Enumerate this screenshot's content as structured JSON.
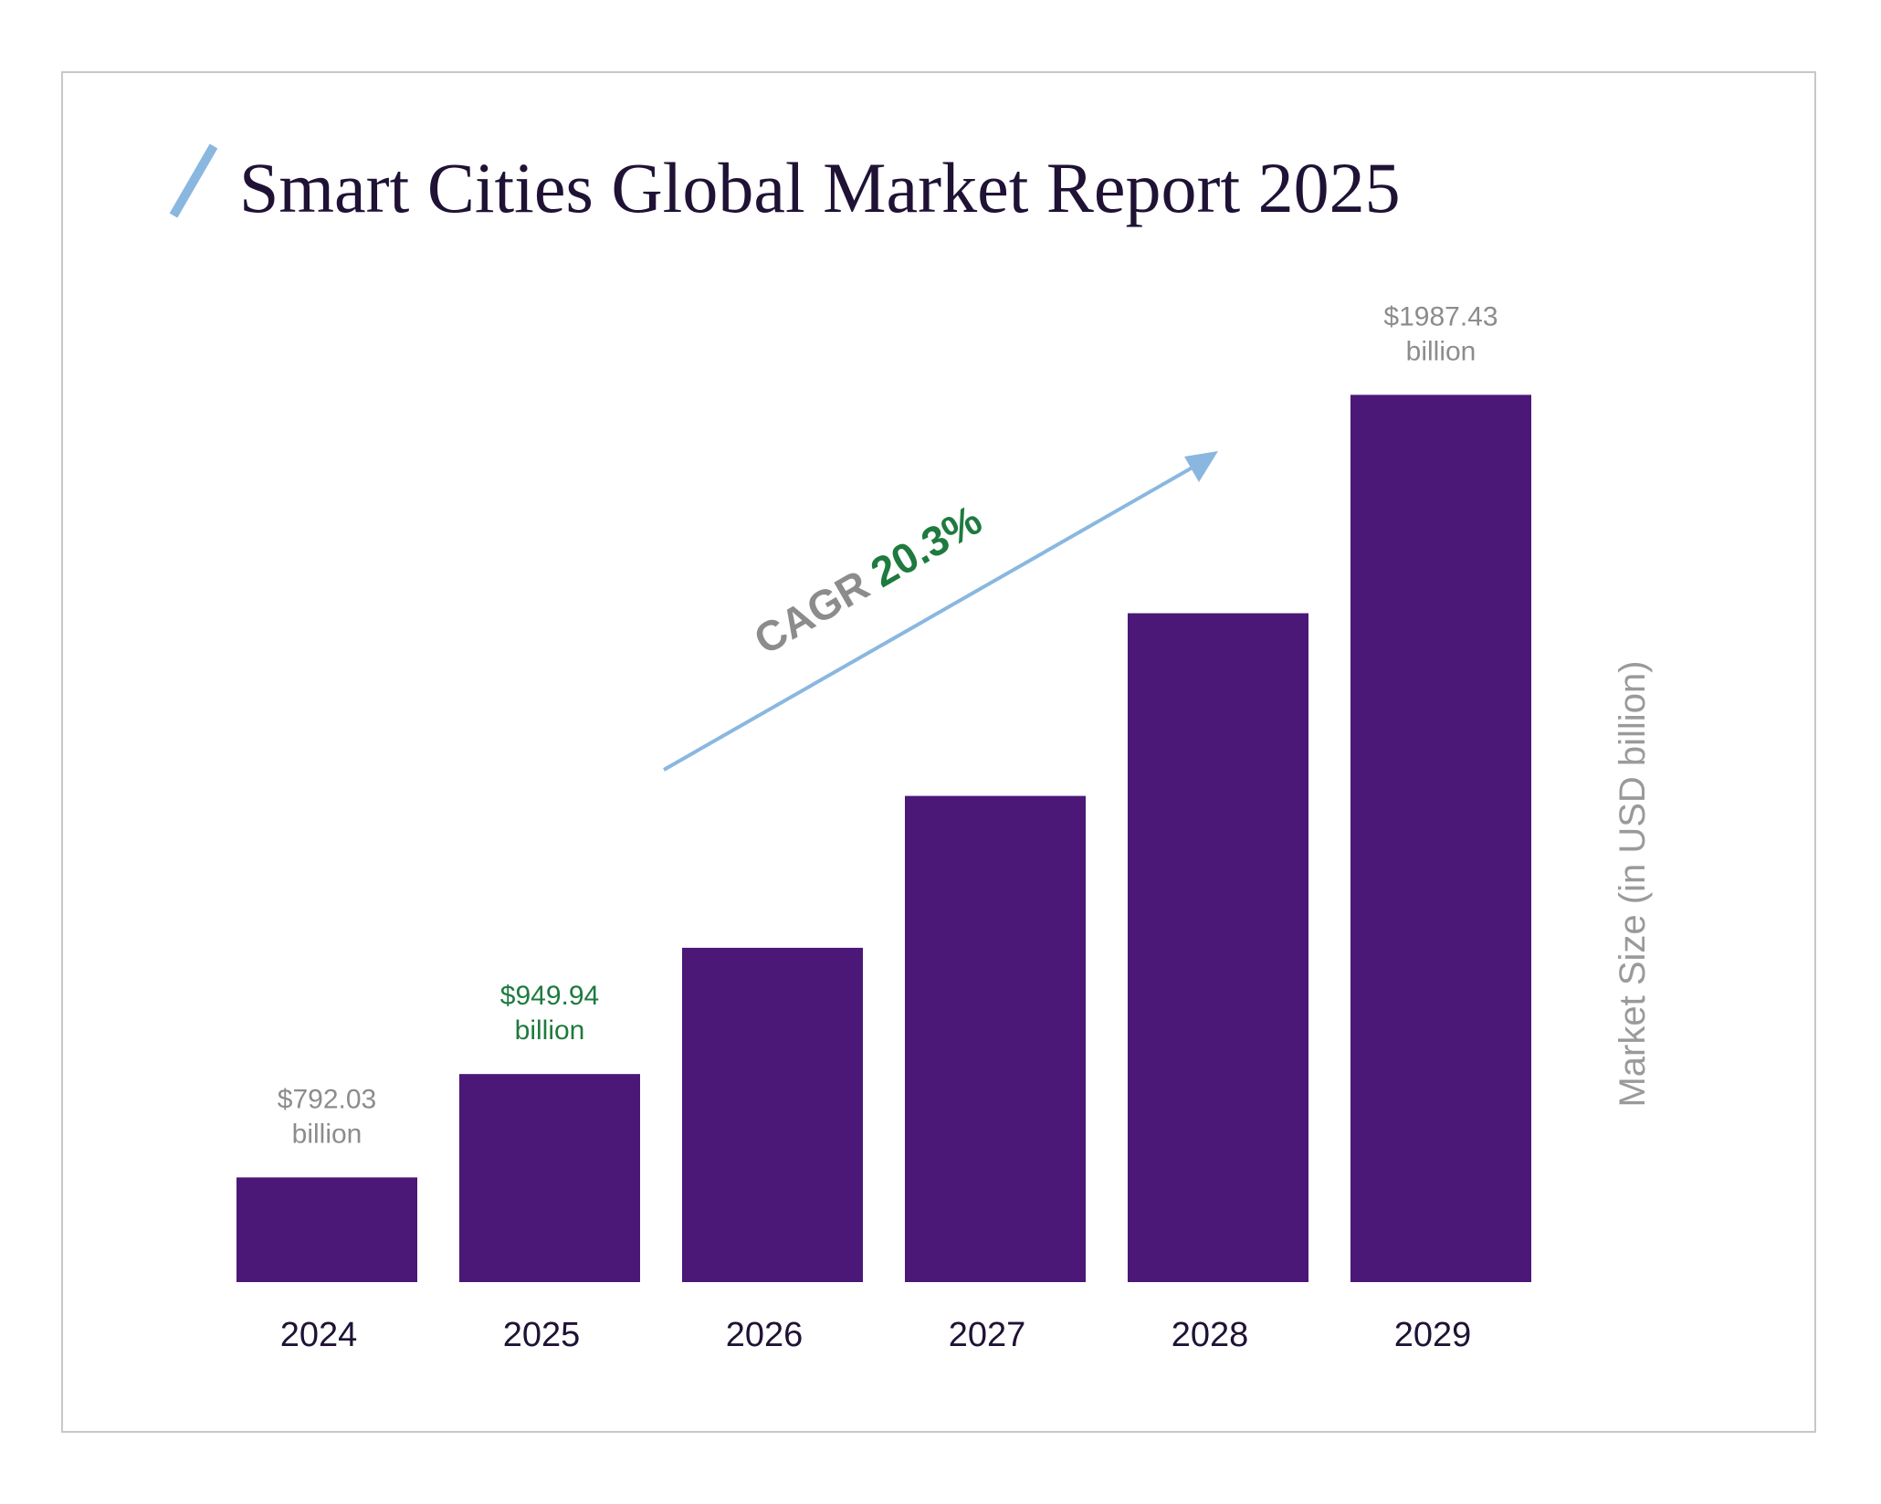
{
  "header": {
    "title": "Smart Cities Global Market Report 2025"
  },
  "colors": {
    "bar": "#4b1878",
    "accent": "#8ab7e0",
    "highlight": "#1e7a3e",
    "muted": "#8c8c8c",
    "title": "#1f1235",
    "frame": "#c8c8c8"
  },
  "annotation": {
    "cagr_label": "CAGR",
    "cagr_value": "20.3%"
  },
  "chart_data": {
    "type": "bar",
    "title": "Smart Cities Global Market Report 2025",
    "xlabel": "",
    "ylabel": "Market Size (in USD billion)",
    "categories": [
      "2024",
      "2025",
      "2026",
      "2027",
      "2028",
      "2029"
    ],
    "values": [
      792.03,
      949.94,
      1142.78,
      1374.76,
      1653.84,
      1987.43
    ],
    "value_labels": [
      [
        "$792.03",
        "billion"
      ],
      [
        "$949.94",
        "billion"
      ],
      null,
      null,
      null,
      [
        "$1987.43",
        "billion"
      ]
    ],
    "highlighted_label_index": 1,
    "grid": false,
    "legend": "none"
  }
}
